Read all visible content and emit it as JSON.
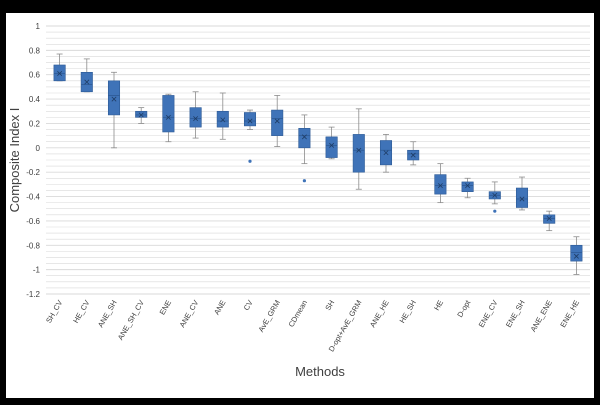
{
  "chart_data": {
    "type": "boxplot",
    "title": "",
    "xlabel": "Methods",
    "ylabel": "Composite Index I",
    "ylim": [
      -1.2,
      1
    ],
    "y_ticks": [
      "1",
      "0.8",
      "0.6",
      "0.4",
      "0.2",
      "0",
      "-0.2",
      "-0.4",
      "-0.6",
      "-0.8",
      "-1",
      "-1.2"
    ],
    "y_tick_values": [
      1,
      0.8,
      0.6,
      0.4,
      0.2,
      0,
      -0.2,
      -0.4,
      -0.6,
      -0.8,
      -1,
      -1.2
    ],
    "grid": true,
    "colors": {
      "box": "#3f73b8",
      "box_edge": "#2d5a95",
      "whisker": "#8c8c8c",
      "grid": "#d9d9d9",
      "mean_marker": "#1f3d66"
    },
    "categories": [
      "SH_CV",
      "HE_CV",
      "ANE_SH",
      "ANE_SH_CV",
      "ENE",
      "ANE_CV",
      "ANE",
      "CV",
      "AvE_GRM",
      "CDmean",
      "SH",
      "D-opt+AvE_GRM",
      "ANE_HE",
      "HE_SH",
      "HE",
      "D-opt",
      "ENE_CV",
      "ENE_SH",
      "ANE_ENE",
      "ENE_HE"
    ],
    "boxes": [
      {
        "category": "SH_CV",
        "min": 0.55,
        "q1": 0.55,
        "median": 0.61,
        "q3": 0.68,
        "max": 0.77,
        "mean": 0.61,
        "outliers": []
      },
      {
        "category": "HE_CV",
        "min": 0.46,
        "q1": 0.46,
        "median": 0.52,
        "q3": 0.62,
        "max": 0.73,
        "mean": 0.54,
        "outliers": []
      },
      {
        "category": "ANE_SH",
        "min": 0.0,
        "q1": 0.27,
        "median": 0.43,
        "q3": 0.55,
        "max": 0.62,
        "mean": 0.4,
        "outliers": []
      },
      {
        "category": "ANE_SH_CV",
        "min": 0.2,
        "q1": 0.25,
        "median": 0.27,
        "q3": 0.3,
        "max": 0.33,
        "mean": 0.27,
        "outliers": []
      },
      {
        "category": "ENE",
        "min": 0.05,
        "q1": 0.13,
        "median": 0.25,
        "q3": 0.43,
        "max": 0.44,
        "mean": 0.25,
        "outliers": []
      },
      {
        "category": "ANE_CV",
        "min": 0.08,
        "q1": 0.17,
        "median": 0.24,
        "q3": 0.33,
        "max": 0.46,
        "mean": 0.24,
        "outliers": []
      },
      {
        "category": "ANE",
        "min": 0.07,
        "q1": 0.17,
        "median": 0.22,
        "q3": 0.3,
        "max": 0.45,
        "mean": 0.23,
        "outliers": []
      },
      {
        "category": "CV",
        "min": 0.15,
        "q1": 0.18,
        "median": 0.22,
        "q3": 0.29,
        "max": 0.31,
        "mean": 0.22,
        "outliers": [
          -0.11
        ]
      },
      {
        "category": "AvE_GRM",
        "min": 0.01,
        "q1": 0.1,
        "median": 0.24,
        "q3": 0.31,
        "max": 0.43,
        "mean": 0.22,
        "outliers": []
      },
      {
        "category": "CDmean",
        "min": -0.13,
        "q1": 0.0,
        "median": 0.1,
        "q3": 0.16,
        "max": 0.27,
        "mean": 0.09,
        "outliers": [
          -0.27
        ]
      },
      {
        "category": "SH",
        "min": -0.09,
        "q1": -0.08,
        "median": 0.02,
        "q3": 0.09,
        "max": 0.17,
        "mean": 0.02,
        "outliers": []
      },
      {
        "category": "D-opt+AvE_GRM",
        "min": -0.34,
        "q1": -0.2,
        "median": -0.02,
        "q3": 0.11,
        "max": 0.32,
        "mean": -0.02,
        "outliers": []
      },
      {
        "category": "ANE_HE",
        "min": -0.2,
        "q1": -0.14,
        "median": -0.02,
        "q3": 0.06,
        "max": 0.11,
        "mean": -0.04,
        "outliers": []
      },
      {
        "category": "HE_SH",
        "min": -0.14,
        "q1": -0.1,
        "median": -0.05,
        "q3": -0.02,
        "max": 0.05,
        "mean": -0.06,
        "outliers": []
      },
      {
        "category": "HE",
        "min": -0.45,
        "q1": -0.38,
        "median": -0.31,
        "q3": -0.22,
        "max": -0.13,
        "mean": -0.31,
        "outliers": []
      },
      {
        "category": "D-opt",
        "min": -0.41,
        "q1": -0.36,
        "median": -0.31,
        "q3": -0.28,
        "max": -0.25,
        "mean": -0.31,
        "outliers": []
      },
      {
        "category": "ENE_CV",
        "min": -0.46,
        "q1": -0.42,
        "median": -0.39,
        "q3": -0.36,
        "max": -0.28,
        "mean": -0.39,
        "outliers": [
          -0.52
        ]
      },
      {
        "category": "ENE_SH",
        "min": -0.51,
        "q1": -0.49,
        "median": -0.42,
        "q3": -0.33,
        "max": -0.24,
        "mean": -0.42,
        "outliers": []
      },
      {
        "category": "ANE_ENE",
        "min": -0.68,
        "q1": -0.62,
        "median": -0.58,
        "q3": -0.55,
        "max": -0.52,
        "mean": -0.58,
        "outliers": []
      },
      {
        "category": "ENE_HE",
        "min": -1.04,
        "q1": -0.93,
        "median": -0.86,
        "q3": -0.8,
        "max": -0.73,
        "mean": -0.89,
        "outliers": []
      }
    ]
  }
}
